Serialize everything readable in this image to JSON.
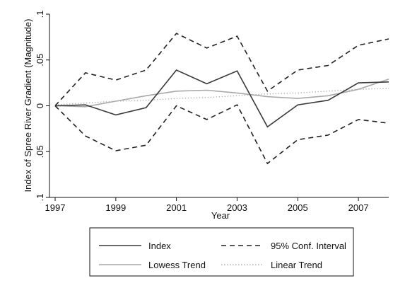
{
  "chart_data": {
    "type": "line",
    "title": "",
    "xlabel": "Year",
    "ylabel": "Index of Spree River Gradient (Magnitude)",
    "xlim": [
      1997,
      2008
    ],
    "ylim": [
      -0.1,
      0.1
    ],
    "x_ticks": [
      1997,
      1999,
      2001,
      2003,
      2005,
      2007
    ],
    "x_tick_labels": [
      "1997",
      "1999",
      "2001",
      "2003",
      "2005",
      "2007"
    ],
    "y_ticks": [
      -0.1,
      -0.05,
      0,
      0.05,
      0.1
    ],
    "y_tick_labels": [
      ".1",
      ".05",
      "0",
      ".05",
      ".1"
    ],
    "grid": false,
    "legend_position": "bottom",
    "x": [
      1997,
      1998,
      1999,
      2000,
      2001,
      2002,
      2003,
      2004,
      2005,
      2006,
      2007,
      2008
    ],
    "series": [
      {
        "name": "Index",
        "style": "solid",
        "color": "#3a3a3a",
        "values": [
          0,
          0.001,
          -0.01,
          -0.002,
          0.039,
          0.024,
          0.038,
          -0.023,
          0.001,
          0.006,
          0.025,
          0.026
        ]
      },
      {
        "name": "95% Conf. Interval",
        "style": "dashed",
        "color": "#222222",
        "values": [
          0,
          0.036,
          0.028,
          0.039,
          0.079,
          0.063,
          0.076,
          0.016,
          0.039,
          0.044,
          0.066,
          0.073
        ]
      },
      {
        "name": "",
        "style": "dashed",
        "color": "#222222",
        "values": [
          0,
          -0.033,
          -0.049,
          -0.043,
          0,
          -0.015,
          0.001,
          -0.063,
          -0.037,
          -0.032,
          -0.015,
          -0.019
        ]
      },
      {
        "name": "Lowess Trend",
        "style": "solid",
        "color": "#a8a8a8",
        "values": [
          0,
          -0.001,
          0.005,
          0.011,
          0.016,
          0.017,
          0.014,
          0.01,
          0.008,
          0.011,
          0.018,
          0.029
        ]
      },
      {
        "name": "Linear Trend",
        "style": "dotted",
        "color": "#b5b5b5",
        "values": [
          0.001,
          0.003,
          0.005,
          0.006,
          0.008,
          0.009,
          0.011,
          0.013,
          0.014,
          0.016,
          0.018,
          0.019
        ]
      }
    ],
    "legend": [
      {
        "label": "Index",
        "style": "solid",
        "color": "#3a3a3a"
      },
      {
        "label": "95% Conf. Interval",
        "style": "dashed",
        "color": "#222222"
      },
      {
        "label": "Lowess Trend",
        "style": "solid",
        "color": "#a8a8a8"
      },
      {
        "label": "Linear Trend",
        "style": "dotted",
        "color": "#b5b5b5"
      }
    ]
  }
}
